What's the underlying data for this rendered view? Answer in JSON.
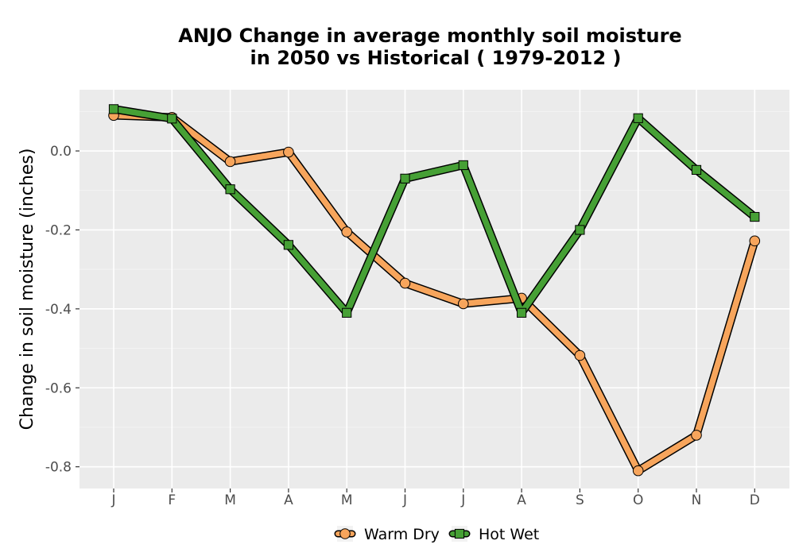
{
  "chart_data": {
    "type": "line",
    "title_line1": "ANJO  Change in average monthly soil moisture",
    "title_line2": "in 2050 vs Historical ( 1979-2012 )",
    "xlabel": "",
    "ylabel": "Change in soil moisture (inches)",
    "categories": [
      "J",
      "F",
      "M",
      "A",
      "M",
      "J",
      "J",
      "A",
      "S",
      "O",
      "N",
      "D"
    ],
    "ylim": [
      -0.855,
      0.155
    ],
    "yticks": [
      0.0,
      -0.2,
      -0.4,
      -0.6,
      -0.8
    ],
    "ytick_labels": [
      "0.0",
      "-0.2",
      "-0.4",
      "-0.6",
      "-0.8"
    ],
    "grid": true,
    "legend_position": "bottom",
    "series": [
      {
        "name": "Warm Dry",
        "color": "#f7a55c",
        "marker": "circle",
        "values": [
          0.09,
          0.085,
          -0.027,
          -0.003,
          -0.205,
          -0.335,
          -0.387,
          -0.373,
          -0.518,
          -0.81,
          -0.72,
          -0.228
        ]
      },
      {
        "name": "Hot Wet",
        "color": "#46a035",
        "marker": "square",
        "values": [
          0.106,
          0.082,
          -0.097,
          -0.238,
          -0.41,
          -0.07,
          -0.036,
          -0.41,
          -0.2,
          0.083,
          -0.048,
          -0.167
        ]
      }
    ]
  }
}
